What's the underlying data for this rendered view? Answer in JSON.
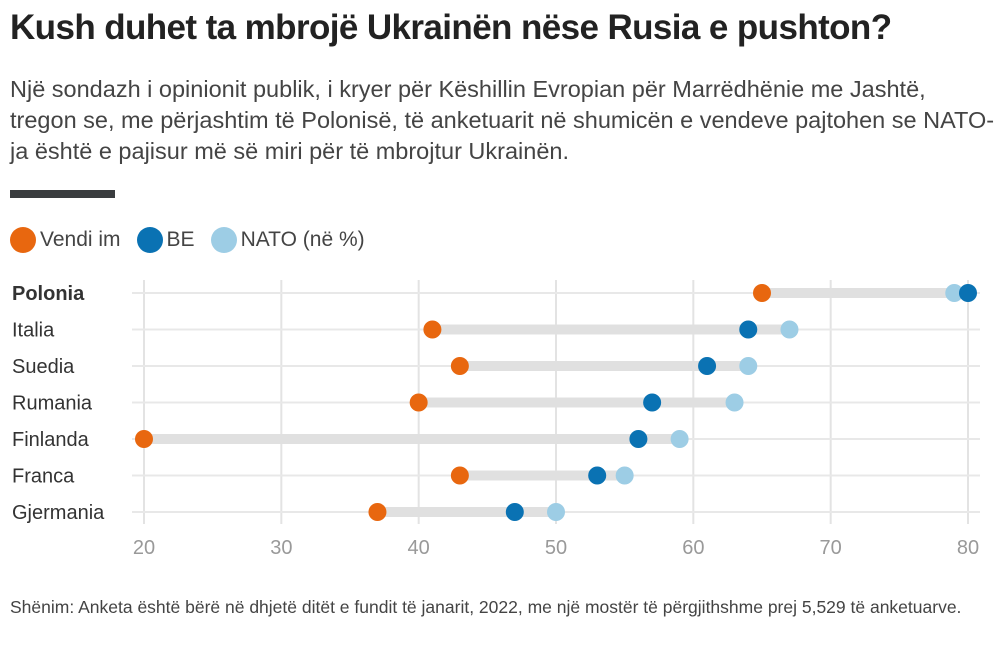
{
  "header": {
    "title": "Kush duhet ta mbrojë Ukrainën nëse Rusia e pushton?",
    "subtitle": "Një sondazh i opinionit publik, i kryer për Këshillin Evropian për Marrëdhënie me Jashtë, tregon se, me përjashtim të Polonisë, të anketuarit në shumicën e vendeve pajtohen se NATO-ja është e pajisur më së miri për të mbrojtur Ukrainën."
  },
  "legend": [
    {
      "label": "Vendi im",
      "color": "#e8670f"
    },
    {
      "label": "BE",
      "color": "#0a72b3"
    },
    {
      "label": "NATO (në %)",
      "color": "#9dcde5"
    }
  ],
  "footer": {
    "note": "Shënim: Anketa është bërë në dhjetë ditët e fundit të janarit, 2022, me një mostër të përgjithshme prej 5,529 të anketuarve."
  },
  "chart_data": {
    "type": "scatter",
    "subtype": "dot-plot",
    "title": "Kush duhet ta mbrojë Ukrainën nëse Rusia e pushton?",
    "xlabel": "",
    "ylabel": "",
    "unit": "%",
    "xlim": [
      20,
      80
    ],
    "x_ticks": [
      20,
      30,
      40,
      50,
      60,
      70,
      80
    ],
    "grid": true,
    "legend_position": "top-left",
    "categories": [
      "Polonia",
      "Italia",
      "Suedia",
      "Rumania",
      "Finlanda",
      "Franca",
      "Gjermania"
    ],
    "highlighted_category": "Polonia",
    "series": [
      {
        "name": "Vendi im",
        "color": "#e8670f",
        "values": [
          65,
          41,
          43,
          40,
          20,
          43,
          37
        ]
      },
      {
        "name": "BE",
        "color": "#0a72b3",
        "values": [
          80,
          64,
          61,
          57,
          56,
          53,
          47
        ]
      },
      {
        "name": "NATO (në %)",
        "color": "#9dcde5",
        "values": [
          79,
          67,
          64,
          63,
          59,
          55,
          50
        ]
      }
    ]
  }
}
